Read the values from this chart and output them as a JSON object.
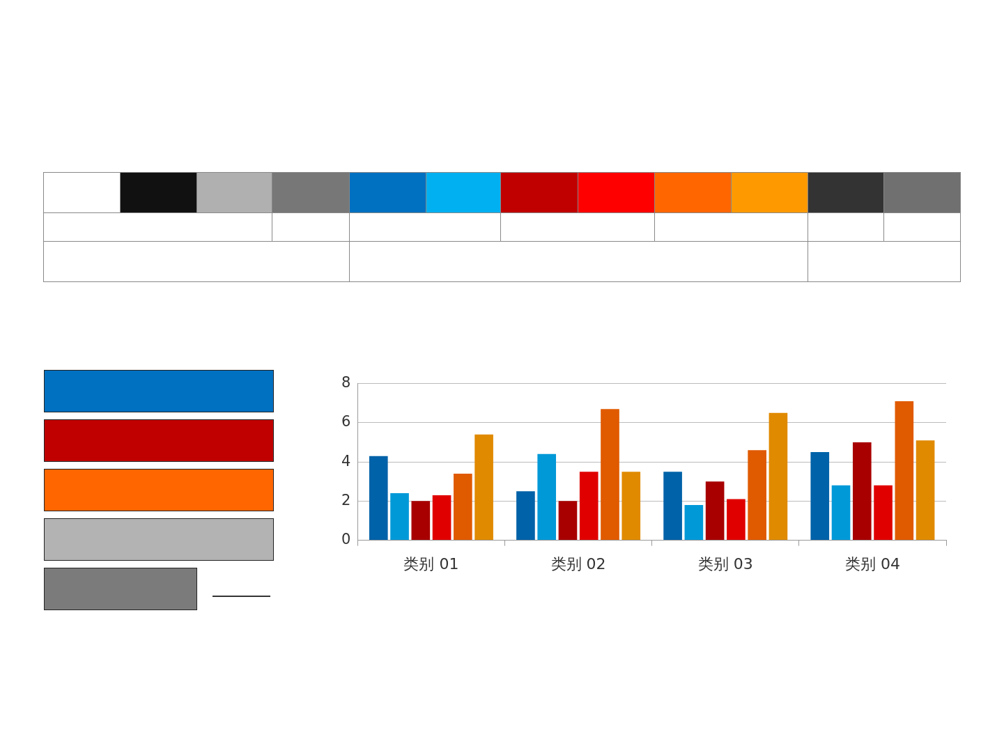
{
  "chart_data": {
    "type": "bar",
    "categories": [
      "类别 01",
      "类别 02",
      "类别 03",
      "类别 04"
    ],
    "series": [
      {
        "color": "#0062a8",
        "values": [
          4.3,
          2.5,
          3.5,
          4.5
        ]
      },
      {
        "color": "#0099d8",
        "values": [
          2.4,
          4.4,
          1.8,
          2.8
        ]
      },
      {
        "color": "#a80000",
        "values": [
          2.0,
          2.0,
          3.0,
          5.0
        ]
      },
      {
        "color": "#e00000",
        "values": [
          2.3,
          3.5,
          2.1,
          2.8
        ]
      },
      {
        "color": "#e05a00",
        "values": [
          3.4,
          6.7,
          4.6,
          7.1
        ]
      },
      {
        "color": "#e08a00",
        "values": [
          5.4,
          3.5,
          6.5,
          5.1
        ]
      }
    ],
    "ylim": [
      0,
      8
    ],
    "yticks": [
      0,
      2,
      4,
      6,
      8
    ],
    "grid": "y",
    "legend": false
  }
}
